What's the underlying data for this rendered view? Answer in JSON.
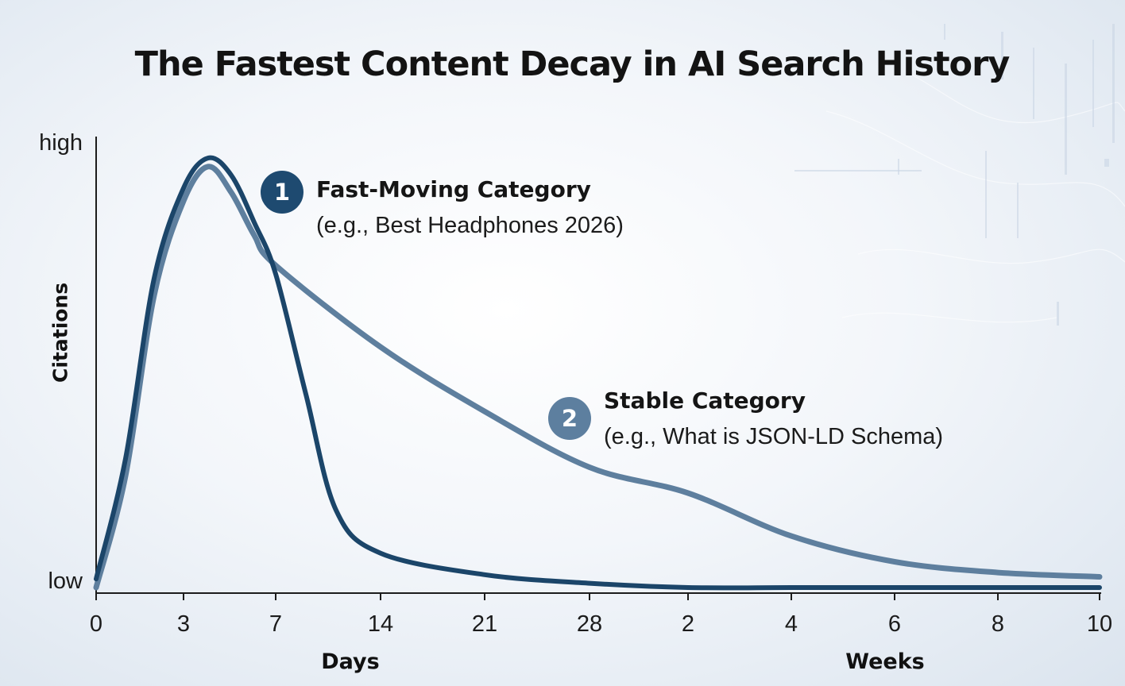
{
  "colors": {
    "fast_series": "#1b4569",
    "stable_series": "#5e7f9e",
    "axis": "#1c1c1c",
    "badge_1": "#1e4a70",
    "badge_2": "#5d7f9f",
    "background": "#eef2f7"
  },
  "chart_data": {
    "type": "line",
    "title": "The Fastest Content Decay in AI Search History",
    "xlabel_days": "Days",
    "xlabel_weeks": "Weeks",
    "ylabel": "Citations",
    "x_ticks": [
      "0",
      "3",
      "7",
      "14",
      "21",
      "28",
      "2",
      "4",
      "6",
      "8",
      "10"
    ],
    "y_ticks": [
      "high",
      "low"
    ],
    "y_scale": "qualitative (low to high)",
    "grid": false,
    "legend": "inline annotations",
    "series": [
      {
        "id": "1",
        "name": "Fast-Moving Category",
        "subtitle": "(e.g., Best Headphones 2026)",
        "x": [
          "0",
          "1",
          "2",
          "3",
          "4",
          "5",
          "6",
          "7",
          "9",
          "11",
          "14",
          "21",
          "28",
          "2",
          "4",
          "6",
          "8",
          "10"
        ],
        "y": [
          0.02,
          0.3,
          0.72,
          0.93,
          1.0,
          0.96,
          0.85,
          0.73,
          0.45,
          0.18,
          0.08,
          0.03,
          0.01,
          0.0,
          0.0,
          0.0,
          0.0,
          0.0
        ]
      },
      {
        "id": "2",
        "name": "Stable Category",
        "subtitle": "(e.g., What is JSON-LD Schema)",
        "x": [
          "0",
          "1",
          "2",
          "3",
          "4",
          "5",
          "6",
          "7",
          "14",
          "21",
          "28",
          "2",
          "4",
          "6",
          "8",
          "10"
        ],
        "y": [
          0.0,
          0.26,
          0.68,
          0.9,
          0.98,
          0.92,
          0.82,
          0.75,
          0.56,
          0.41,
          0.28,
          0.22,
          0.12,
          0.06,
          0.035,
          0.025
        ]
      }
    ]
  }
}
